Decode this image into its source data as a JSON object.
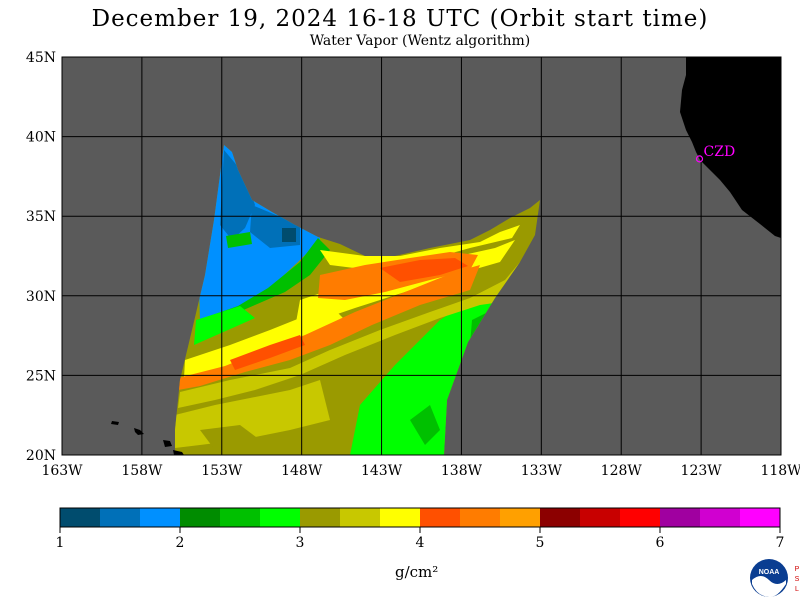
{
  "header": {
    "title": "December 19, 2024  16-18 UTC  (Orbit start time)",
    "subtitle": "Water Vapor (Wentz algorithm)"
  },
  "map": {
    "lon_range": [
      -163,
      -118
    ],
    "lat_range": [
      20,
      45
    ],
    "lat_labels": [
      "45N",
      "40N",
      "35N",
      "30N",
      "25N",
      "20N"
    ],
    "lon_labels": [
      "163W",
      "158W",
      "153W",
      "148W",
      "143W",
      "138W",
      "133W",
      "128W",
      "123W",
      "118W"
    ],
    "station": {
      "label": "CZD",
      "lon": -123.1,
      "lat": 38.6
    },
    "colors": {
      "ocean": "#5a5a5a",
      "land": "#000000",
      "grid": "#000000",
      "station": "#ff00ff"
    }
  },
  "colorbar": {
    "ticks": [
      "1",
      "2",
      "3",
      "4",
      "5",
      "6",
      "7"
    ],
    "range": [
      1,
      7
    ],
    "unit": "g/cm²",
    "colors": [
      "#004c6e",
      "#0070b8",
      "#0090ff",
      "#008c00",
      "#00c000",
      "#00ff00",
      "#9a9a00",
      "#c8c800",
      "#ffff00",
      "#ff5000",
      "#ff7c00",
      "#ffa000",
      "#8c0000",
      "#c80000",
      "#ff0000",
      "#a000a0",
      "#d000d0",
      "#ff00ff"
    ]
  },
  "logo": {
    "text": "NOAA",
    "side_letters": [
      "P",
      "S",
      "L"
    ]
  }
}
